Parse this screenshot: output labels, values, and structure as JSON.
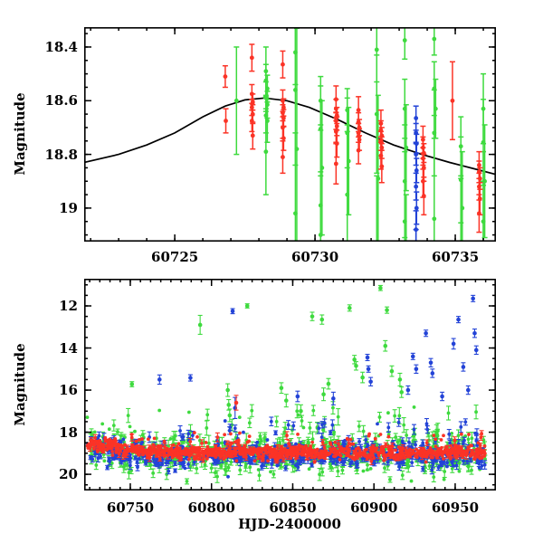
{
  "figure": {
    "bg": "#ffffff",
    "axis_color": "#000000",
    "colors": {
      "red": "#fb3326",
      "green": "#3eda3e",
      "blue": "#2343d7",
      "model": "#000000"
    }
  },
  "chart_data": [
    {
      "type": "scatter",
      "title": "",
      "xlabel": "",
      "ylabel": "Magnitude",
      "xlim": [
        60721.77,
        60736.45
      ],
      "ylim": [
        18.326,
        19.125
      ],
      "y_axis_inverted": true,
      "grid": false,
      "legend": "none",
      "x_ticks": [
        60725,
        60730,
        60735
      ],
      "x_tick_labels": [
        "60725",
        "60730",
        "60735"
      ],
      "x_minor_step": 1,
      "y_ticks": [
        18.4,
        18.6,
        18.8,
        19.0
      ],
      "y_tick_labels": [
        "18.4",
        "18.6",
        "18.8",
        "19"
      ],
      "y_minor_step": 0.05,
      "model_curve": [
        [
          60721.77,
          18.83
        ],
        [
          60723.0,
          18.8
        ],
        [
          60724.0,
          18.765
        ],
        [
          60725.0,
          18.72
        ],
        [
          60726.0,
          18.66
        ],
        [
          60726.8,
          18.62
        ],
        [
          60727.5,
          18.597
        ],
        [
          60728.2,
          18.59
        ],
        [
          60729.0,
          18.6
        ],
        [
          60729.8,
          18.625
        ],
        [
          60730.8,
          18.67
        ],
        [
          60731.8,
          18.72
        ],
        [
          60732.8,
          18.765
        ],
        [
          60733.8,
          18.8
        ],
        [
          60734.8,
          18.83
        ],
        [
          60735.8,
          18.857
        ],
        [
          60736.45,
          18.875
        ]
      ],
      "series": [
        {
          "name": "green",
          "color_key": "green",
          "points": [
            [
              60727.2,
              18.6,
              0.2
            ],
            [
              60728.25,
              18.49,
              0.09
            ],
            [
              60728.25,
              18.525,
              0.06
            ],
            [
              60728.3,
              18.555,
              0.05
            ],
            [
              60728.25,
              18.585,
              0.055
            ],
            [
              60728.3,
              18.615,
              0.05
            ],
            [
              60728.25,
              18.655,
              0.065
            ],
            [
              60728.3,
              18.675,
              0.08
            ],
            [
              60728.25,
              18.79,
              0.16
            ],
            [
              60729.3,
              18.42,
              0.12
            ],
            [
              60729.3,
              18.56,
              0.28
            ],
            [
              60729.35,
              18.78,
              0.45
            ],
            [
              60729.3,
              19.02,
              0.3
            ],
            [
              60730.2,
              18.6,
              0.09
            ],
            [
              60730.2,
              18.705,
              0.16
            ],
            [
              60730.25,
              18.85,
              0.25
            ],
            [
              60730.2,
              18.99,
              0.28
            ],
            [
              60730.2,
              19.1,
              0.22
            ],
            [
              60731.15,
              18.635,
              0.08
            ],
            [
              60731.15,
              18.72,
              0.13
            ],
            [
              60731.2,
              18.825,
              0.2
            ],
            [
              60731.15,
              18.95,
              0.26
            ],
            [
              60732.2,
              18.41,
              0.12
            ],
            [
              60732.2,
              18.65,
              0.22
            ],
            [
              60732.25,
              18.89,
              0.31
            ],
            [
              60732.2,
              19.14,
              0.26
            ],
            [
              60733.2,
              18.375,
              0.07
            ],
            [
              60733.2,
              18.63,
              0.11
            ],
            [
              60733.25,
              18.775,
              0.16
            ],
            [
              60733.2,
              18.9,
              0.21
            ],
            [
              60733.2,
              19.05,
              0.26
            ],
            [
              60733.25,
              19.16,
              0.21
            ],
            [
              60734.25,
              18.37,
              0.06
            ],
            [
              60734.25,
              18.555,
              0.1
            ],
            [
              60734.3,
              18.63,
              0.11
            ],
            [
              60734.25,
              18.72,
              0.16
            ],
            [
              60734.25,
              19.04,
              0.3
            ],
            [
              60735.2,
              18.77,
              0.11
            ],
            [
              60735.2,
              18.895,
              0.16
            ],
            [
              60735.25,
              19.0,
              0.21
            ],
            [
              60735.2,
              19.15,
              0.26
            ],
            [
              60736.0,
              18.63,
              0.13
            ],
            [
              60736.0,
              18.755,
              0.16
            ],
            [
              60736.05,
              18.9,
              0.21
            ],
            [
              60736.0,
              19.05,
              0.26
            ],
            [
              60736.0,
              19.2,
              0.3
            ]
          ]
        },
        {
          "name": "blue",
          "color_key": "blue",
          "points": [
            [
              60733.6,
              18.665,
              0.045
            ],
            [
              60733.6,
              18.72,
              0.035
            ],
            [
              60733.62,
              18.76,
              0.035
            ],
            [
              60733.6,
              18.8,
              0.04
            ],
            [
              60733.62,
              18.86,
              0.045
            ],
            [
              60733.6,
              18.92,
              0.05
            ],
            [
              60733.62,
              19.0,
              0.06
            ],
            [
              60733.6,
              19.08,
              0.07
            ],
            [
              60733.6,
              19.16,
              0.08
            ]
          ]
        },
        {
          "name": "red",
          "color_key": "red",
          "points": [
            [
              60726.8,
              18.51,
              0.04
            ],
            [
              60726.82,
              18.675,
              0.045
            ],
            [
              60727.75,
              18.44,
              0.05
            ],
            [
              60727.75,
              18.575,
              0.035
            ],
            [
              60727.78,
              18.605,
              0.03
            ],
            [
              60727.75,
              18.625,
              0.03
            ],
            [
              60727.78,
              18.65,
              0.035
            ],
            [
              60727.75,
              18.675,
              0.04
            ],
            [
              60727.78,
              18.73,
              0.05
            ],
            [
              60728.85,
              18.465,
              0.05
            ],
            [
              60728.85,
              18.6,
              0.04
            ],
            [
              60728.88,
              18.625,
              0.032
            ],
            [
              60728.85,
              18.645,
              0.03
            ],
            [
              60728.88,
              18.665,
              0.032
            ],
            [
              60728.85,
              18.7,
              0.04
            ],
            [
              60728.88,
              18.74,
              0.045
            ],
            [
              60728.85,
              18.81,
              0.06
            ],
            [
              60730.75,
              18.595,
              0.05
            ],
            [
              60730.75,
              18.63,
              0.035
            ],
            [
              60730.78,
              18.655,
              0.03
            ],
            [
              60730.75,
              18.675,
              0.032
            ],
            [
              60730.78,
              18.695,
              0.035
            ],
            [
              60730.75,
              18.715,
              0.04
            ],
            [
              60730.78,
              18.76,
              0.05
            ],
            [
              60730.75,
              18.835,
              0.075
            ],
            [
              60731.55,
              18.635,
              0.05
            ],
            [
              60731.55,
              18.68,
              0.035
            ],
            [
              60731.58,
              18.7,
              0.03
            ],
            [
              60731.55,
              18.72,
              0.035
            ],
            [
              60731.58,
              18.745,
              0.04
            ],
            [
              60731.55,
              18.785,
              0.05
            ],
            [
              60732.35,
              18.685,
              0.05
            ],
            [
              60732.35,
              18.71,
              0.035
            ],
            [
              60732.38,
              18.73,
              0.03
            ],
            [
              60732.35,
              18.75,
              0.035
            ],
            [
              60732.38,
              18.775,
              0.04
            ],
            [
              60732.35,
              18.805,
              0.05
            ],
            [
              60732.38,
              18.845,
              0.06
            ],
            [
              60733.85,
              18.745,
              0.05
            ],
            [
              60733.85,
              18.775,
              0.04
            ],
            [
              60733.88,
              18.795,
              0.035
            ],
            [
              60733.85,
              18.815,
              0.04
            ],
            [
              60733.88,
              18.85,
              0.05
            ],
            [
              60733.85,
              18.9,
              0.06
            ],
            [
              60733.88,
              18.955,
              0.07
            ],
            [
              60734.9,
              18.6,
              0.145
            ],
            [
              60735.85,
              18.84,
              0.05
            ],
            [
              60735.85,
              18.865,
              0.04
            ],
            [
              60735.88,
              18.89,
              0.04
            ],
            [
              60735.85,
              18.92,
              0.05
            ],
            [
              60735.88,
              18.965,
              0.06
            ],
            [
              60735.85,
              19.02,
              0.07
            ]
          ]
        }
      ]
    },
    {
      "type": "scatter",
      "title": "",
      "xlabel": "HJD-2400000",
      "ylabel": "Magnitude",
      "xlim": [
        60721.6,
        60975.1
      ],
      "ylim": [
        10.71,
        20.77
      ],
      "y_axis_inverted": true,
      "grid": false,
      "legend": "none",
      "x_ticks": [
        60750,
        60800,
        60850,
        60900,
        60950
      ],
      "x_tick_labels": [
        "60750",
        "60800",
        "60850",
        "60900",
        "60950"
      ],
      "x_minor_step": 6.25,
      "y_ticks": [
        12,
        14,
        16,
        18,
        20
      ],
      "y_tick_labels": [
        "12",
        "14",
        "16",
        "18",
        "20"
      ],
      "y_minor_step": 0.5,
      "band": {
        "description": "dense quiescent light-curve band around mag 19 from three telescopes",
        "x_start": 60723.5,
        "x_end": 60968.5,
        "seed": 20240613,
        "event_t0": 60727,
        "event_tau": 20,
        "event_amp": -0.32,
        "series": [
          {
            "color_key": "green",
            "n": 560,
            "mean": 19.05,
            "sigma": 0.45,
            "tail_frac": 0.1,
            "tail_up": 1.9,
            "err": 0.18
          },
          {
            "color_key": "blue",
            "n": 560,
            "mean": 19.1,
            "sigma": 0.3,
            "tail_frac": 0.07,
            "tail_up": 1.3,
            "err": 0.12
          },
          {
            "color_key": "red",
            "n": 950,
            "mean": 18.95,
            "sigma": 0.16,
            "tail_frac": 0.05,
            "tail_up": 0.6,
            "err": 0.1
          }
        ]
      },
      "outliers": [
        [
          60751,
          15.72,
          0.12,
          "green"
        ],
        [
          60768,
          15.5,
          0.22,
          "blue"
        ],
        [
          60787,
          15.42,
          0.15,
          "blue"
        ],
        [
          60793,
          12.9,
          0.45,
          "green"
        ],
        [
          60810,
          16.0,
          0.3,
          "green"
        ],
        [
          60810.6,
          16.7,
          0.25,
          "green"
        ],
        [
          60811.2,
          17.2,
          0.3,
          "green"
        ],
        [
          60813,
          12.25,
          0.12,
          "blue"
        ],
        [
          60814.5,
          16.85,
          0.5,
          "blue"
        ],
        [
          60815.2,
          16.6,
          0.35,
          "red"
        ],
        [
          60822,
          12.0,
          0.1,
          "green"
        ],
        [
          60843,
          15.9,
          0.25,
          "green"
        ],
        [
          60846,
          16.5,
          0.3,
          "green"
        ],
        [
          60853,
          16.3,
          0.25,
          "blue"
        ],
        [
          60855,
          17.0,
          0.3,
          "green"
        ],
        [
          60862,
          12.5,
          0.2,
          "green"
        ],
        [
          60868,
          12.65,
          0.22,
          "green"
        ],
        [
          60869,
          16.2,
          0.3,
          "green"
        ],
        [
          60872,
          15.7,
          0.25,
          "green"
        ],
        [
          60875,
          16.4,
          0.3,
          "blue"
        ],
        [
          60885,
          12.1,
          0.15,
          "green"
        ],
        [
          60888,
          14.55,
          0.2,
          "green"
        ],
        [
          60889,
          14.85,
          0.2,
          "green"
        ],
        [
          60893,
          15.4,
          0.25,
          "green"
        ],
        [
          60896,
          14.45,
          0.15,
          "blue"
        ],
        [
          60896.6,
          15.0,
          0.15,
          "blue"
        ],
        [
          60898,
          15.6,
          0.2,
          "blue"
        ],
        [
          60904,
          11.15,
          0.12,
          "green"
        ],
        [
          60907,
          13.9,
          0.25,
          "green"
        ],
        [
          60908,
          12.2,
          0.15,
          "green"
        ],
        [
          60911,
          15.1,
          0.25,
          "green"
        ],
        [
          60916,
          15.5,
          0.3,
          "green"
        ],
        [
          60917,
          16.1,
          0.25,
          "green"
        ],
        [
          60921,
          16.0,
          0.2,
          "blue"
        ],
        [
          60924,
          14.4,
          0.15,
          "blue"
        ],
        [
          60926,
          15.0,
          0.2,
          "blue"
        ],
        [
          60932,
          13.3,
          0.15,
          "blue"
        ],
        [
          60935,
          14.7,
          0.2,
          "blue"
        ],
        [
          60936,
          15.2,
          0.2,
          "blue"
        ],
        [
          60942,
          16.3,
          0.2,
          "blue"
        ],
        [
          60949,
          13.8,
          0.25,
          "blue"
        ],
        [
          60952,
          12.65,
          0.15,
          "blue"
        ],
        [
          60955,
          14.9,
          0.2,
          "blue"
        ],
        [
          60958,
          16.0,
          0.2,
          "blue"
        ],
        [
          60961,
          11.65,
          0.15,
          "blue"
        ],
        [
          60962,
          13.3,
          0.2,
          "blue"
        ],
        [
          60963,
          14.1,
          0.2,
          "blue"
        ]
      ]
    }
  ]
}
